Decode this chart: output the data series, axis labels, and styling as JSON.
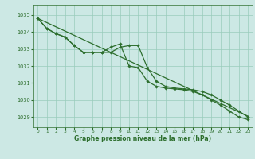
{
  "xlabel": "Graphe pression niveau de la mer (hPa)",
  "bg_color": "#cce8e4",
  "grid_color": "#99ccbb",
  "line_color": "#2d6e2d",
  "text_color": "#2d6e2d",
  "xlim": [
    -0.5,
    23.5
  ],
  "ylim": [
    1028.4,
    1035.6
  ],
  "yticks": [
    1029,
    1030,
    1031,
    1032,
    1033,
    1034,
    1035
  ],
  "xticks": [
    0,
    1,
    2,
    3,
    4,
    5,
    6,
    7,
    8,
    9,
    10,
    11,
    12,
    13,
    14,
    15,
    16,
    17,
    18,
    19,
    20,
    21,
    22,
    23
  ],
  "trend": [
    1034.8,
    1034.55,
    1034.3,
    1034.05,
    1033.8,
    1033.55,
    1033.3,
    1033.05,
    1032.8,
    1032.55,
    1032.3,
    1032.05,
    1031.8,
    1031.55,
    1031.3,
    1031.05,
    1030.8,
    1030.55,
    1030.3,
    1030.05,
    1029.8,
    1029.55,
    1029.3,
    1029.05
  ],
  "line2": [
    1034.8,
    1034.2,
    1033.9,
    1033.7,
    1033.2,
    1032.8,
    1032.8,
    1032.8,
    1032.8,
    1033.1,
    1033.2,
    1033.2,
    1031.9,
    1031.1,
    1030.8,
    1030.7,
    1030.65,
    1030.6,
    1030.5,
    1030.3,
    1030.0,
    1029.7,
    1029.35,
    1029.0
  ],
  "line3": [
    1034.8,
    1034.2,
    1033.9,
    1033.7,
    1033.2,
    1032.8,
    1032.8,
    1032.8,
    1033.1,
    1033.3,
    1032.0,
    1031.9,
    1031.1,
    1030.8,
    1030.7,
    1030.65,
    1030.6,
    1030.5,
    1030.3,
    1030.0,
    1029.7,
    1029.35,
    1029.0,
    1028.85
  ]
}
